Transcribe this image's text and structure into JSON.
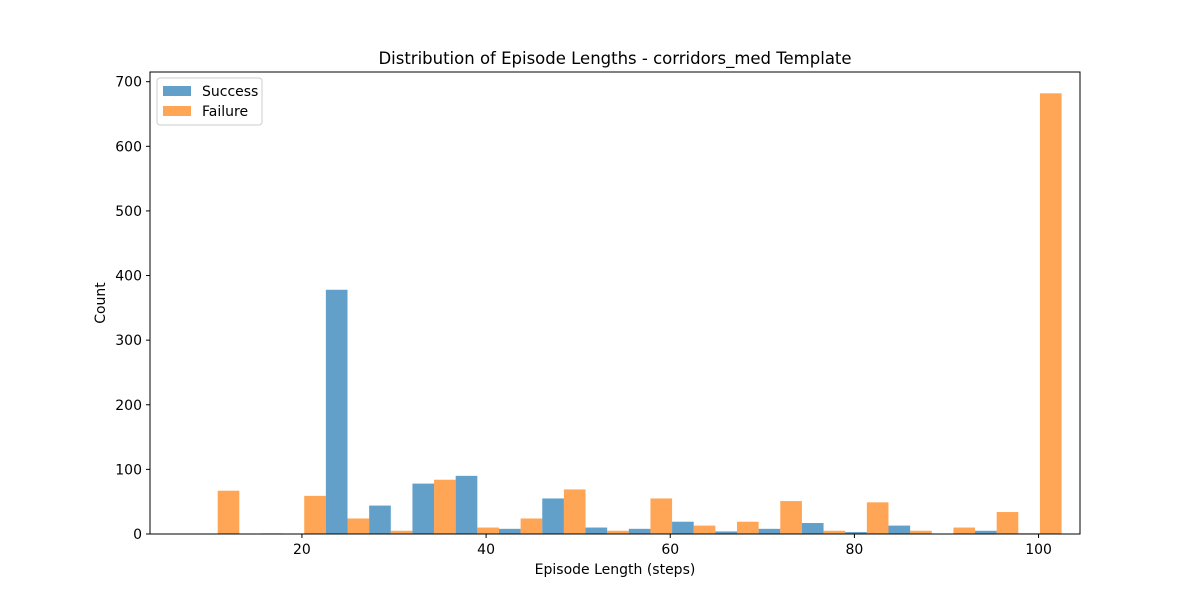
{
  "chart_data": {
    "type": "bar",
    "title": "Distribution of Episode Lengths - corridors_med Template",
    "xlabel": "Episode Length (steps)",
    "ylabel": "Count",
    "xlim": [
      3.5,
      104.5
    ],
    "ylim": [
      0,
      715
    ],
    "xticks": [
      20,
      40,
      60,
      80,
      100
    ],
    "yticks": [
      0,
      100,
      200,
      300,
      400,
      500,
      600,
      700
    ],
    "bin_edges": [
      8.5,
      13.2,
      17.9,
      22.6,
      27.3,
      32.0,
      36.7,
      41.4,
      46.1,
      50.8,
      55.5,
      60.2,
      64.9,
      69.6,
      74.3,
      79.0,
      83.7,
      88.4,
      93.1,
      97.8,
      102.5
    ],
    "legend_position": "upper left",
    "grid": false,
    "series": [
      {
        "name": "Success",
        "color": "#1f77b4",
        "values": [
          0,
          0,
          0,
          378,
          44,
          78,
          90,
          8,
          55,
          10,
          8,
          19,
          4,
          8,
          17,
          3,
          13,
          0,
          5,
          1
        ]
      },
      {
        "name": "Failure",
        "color": "#ff7f0e",
        "values": [
          67,
          1,
          59,
          24,
          5,
          84,
          10,
          24,
          69,
          5,
          55,
          13,
          19,
          51,
          5,
          49,
          5,
          10,
          34,
          682
        ]
      }
    ]
  }
}
